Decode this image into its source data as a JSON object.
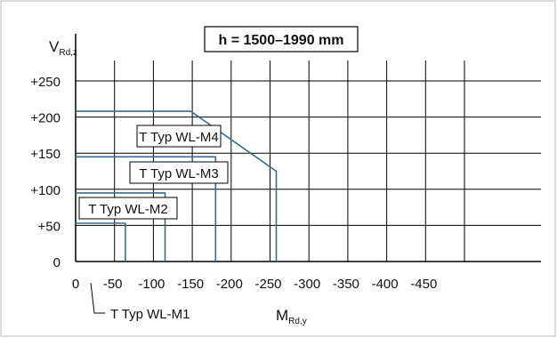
{
  "chart_data": {
    "type": "line",
    "title": "h = 1500–1990 mm",
    "ylabel_main": "V",
    "ylabel_sub": "Rd,z",
    "xlabel_main": "M",
    "xlabel_sub": "Rd,y",
    "x_ticks": [
      "0",
      "-50",
      "-100",
      "-150",
      "-200",
      "-250",
      "-300",
      "-350",
      "-400",
      "-450"
    ],
    "y_ticks": [
      "0",
      "+50",
      "+100",
      "+150",
      "+200",
      "+250"
    ],
    "xlim": [
      0,
      -460
    ],
    "ylim": [
      0,
      260
    ],
    "grid": true,
    "line_color": "#3a6b8a",
    "series": [
      {
        "name": "T Typ WL-M1",
        "points": [
          [
            0,
            53
          ],
          [
            -64,
            53
          ],
          [
            -64,
            0
          ]
        ]
      },
      {
        "name": "T Typ WL-M2",
        "points": [
          [
            0,
            95
          ],
          [
            -115,
            95
          ],
          [
            -115,
            0
          ]
        ]
      },
      {
        "name": "T Typ WL-M3",
        "points": [
          [
            0,
            145
          ],
          [
            -180,
            145
          ],
          [
            -180,
            0
          ]
        ]
      },
      {
        "name": "T Typ WL-M4",
        "points": [
          [
            0,
            208
          ],
          [
            -148,
            208
          ],
          [
            -258,
            125
          ],
          [
            -258,
            0
          ]
        ]
      }
    ]
  }
}
